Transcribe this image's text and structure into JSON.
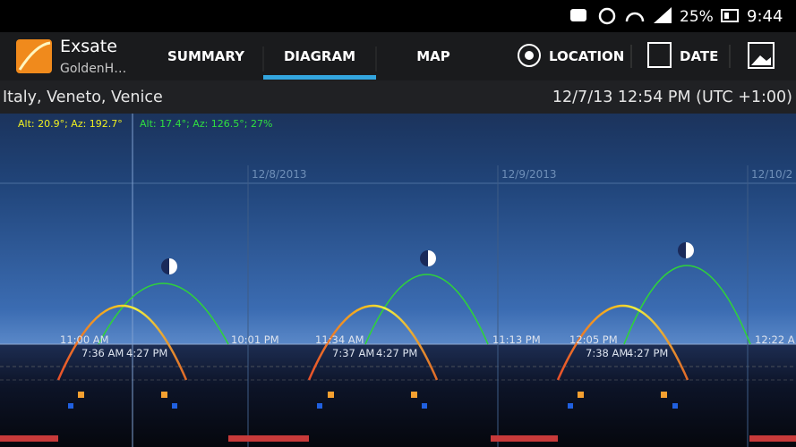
{
  "status_bar": {
    "battery": "25%",
    "time": "9:44"
  },
  "app": {
    "title": "Exsate",
    "subtitle": "GoldenH…"
  },
  "tabs": [
    "SUMMARY",
    "DIAGRAM",
    "MAP"
  ],
  "actions": [
    "LOCATION",
    "DATE"
  ],
  "location": "Italy, Veneto, Venice",
  "datetime": "12/7/13 12:54 PM (UTC +1:00)",
  "readouts": {
    "sun": "Alt: 20.9°; Az: 192.7°",
    "moon": "Alt: 17.4°; Az: 126.5°; 27%"
  },
  "dates": [
    "12/8/2013",
    "12/9/2013",
    "12/10/2"
  ],
  "time_labels": [
    "11:00 AM",
    "7:36 AM",
    "4:27 PM",
    "10:01 PM",
    "11:34 AM",
    "7:37 AM",
    "4:27 PM",
    "11:13 PM",
    "12:05 PM",
    "7:38 AM",
    "4:27 PM",
    "12:22 A"
  ]
}
